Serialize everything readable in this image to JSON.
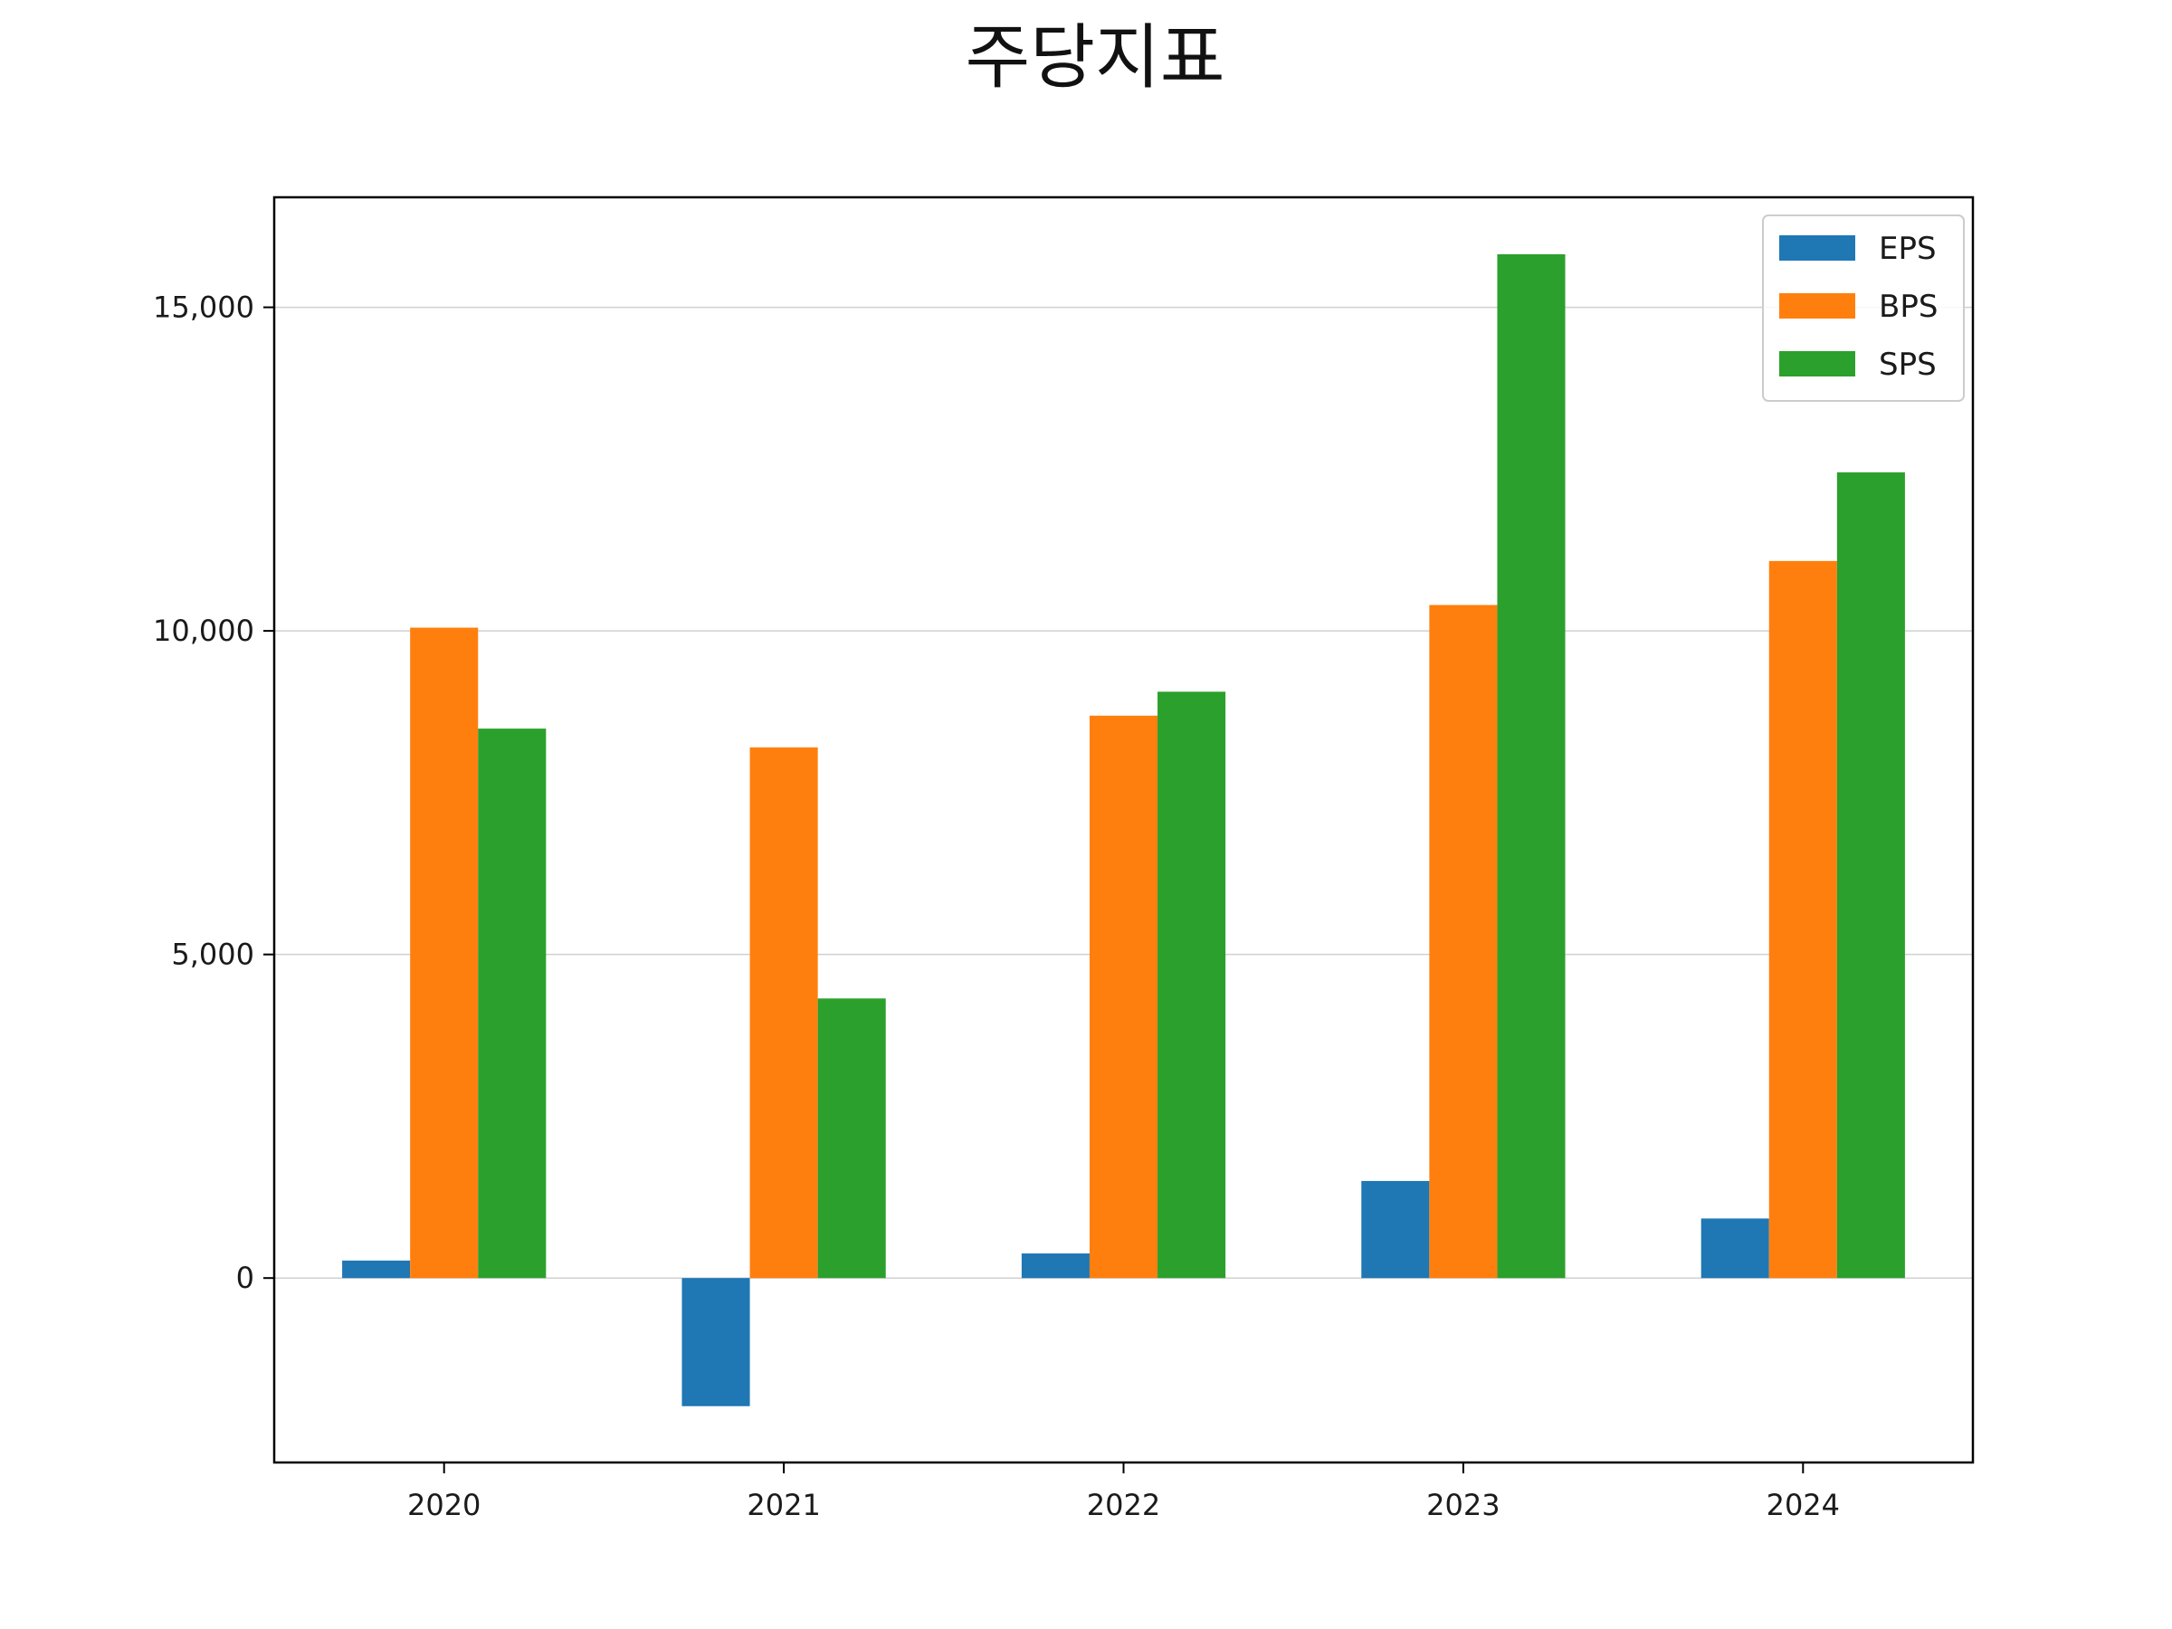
{
  "chart_data": {
    "type": "bar",
    "title": "주당지표",
    "xlabel": "",
    "ylabel": "",
    "categories": [
      "2020",
      "2021",
      "2022",
      "2023",
      "2024"
    ],
    "series": [
      {
        "name": "EPS",
        "color": "#1f77b4",
        "values": [
          270,
          -1980,
          380,
          1500,
          920
        ]
      },
      {
        "name": "BPS",
        "color": "#ff7f0e",
        "values": [
          10050,
          8200,
          8690,
          10400,
          11080
        ]
      },
      {
        "name": "SPS",
        "color": "#2ca02c",
        "values": [
          8490,
          4320,
          9060,
          15820,
          12450
        ]
      }
    ],
    "ylim": [
      -2850,
      16700
    ],
    "yticks": [
      0,
      5000,
      10000,
      15000
    ],
    "ytick_labels": [
      "0",
      "5,000",
      "10,000",
      "15,000"
    ],
    "grid": "horizontal",
    "legend_position": "top-right"
  }
}
